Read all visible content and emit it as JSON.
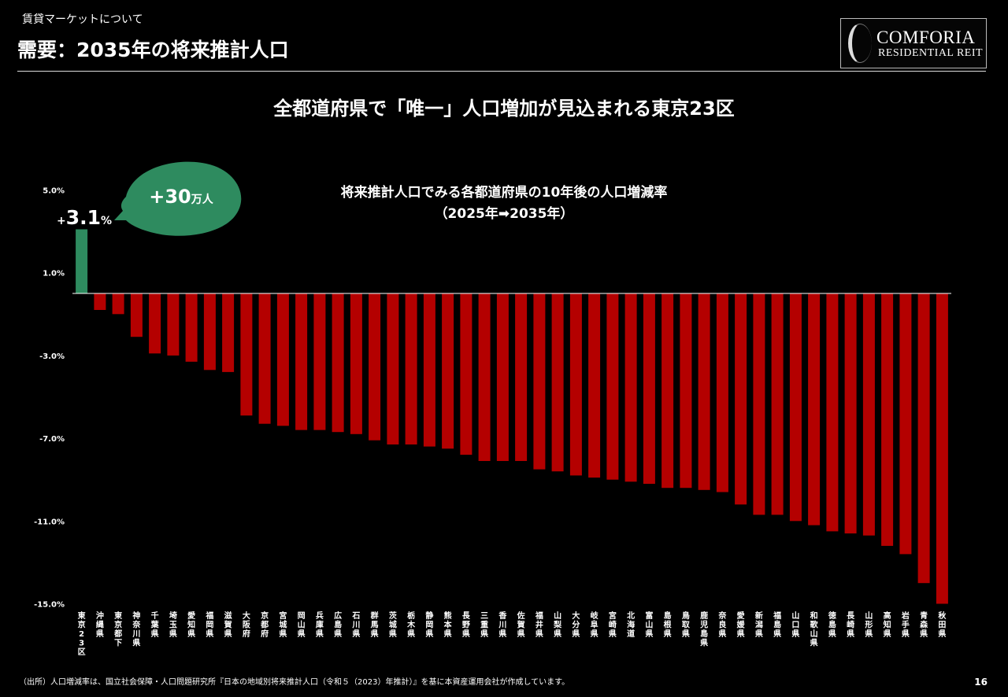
{
  "header": {
    "section": "賃貸マーケットについて",
    "title": "需要：2035年の将来推計人口"
  },
  "logo": {
    "line1": "COMFORIA",
    "line2": "RESIDENTIAL REIT"
  },
  "headline": "全都道府県で「唯一」人口増加が見込まれる東京23区",
  "callout": {
    "prefix": "+",
    "value": "3.1",
    "suffix": "%",
    "bubble_value": "+30",
    "bubble_unit": "万人"
  },
  "colors": {
    "positive": "#2e8b5f",
    "negative": "#b40000",
    "bubble": "#2e8b5f"
  },
  "chart_data": {
    "type": "bar",
    "title": "将来推計人口でみる各都道府県の10年後の人口増減率",
    "subtitle": "（2025年➡2035年）",
    "ylim": [
      -15,
      5
    ],
    "yticks": [
      5,
      1,
      -3,
      -7,
      -11,
      -15
    ],
    "ytick_labels": [
      "5.0%",
      "1.0%",
      "-3.0%",
      "-7.0%",
      "-11.0%",
      "-15.0%"
    ],
    "categories": [
      "東京23区",
      "沖縄県",
      "東京都下",
      "神奈川県",
      "千葉県",
      "埼玉県",
      "愛知県",
      "福岡県",
      "滋賀県",
      "大阪府",
      "京都府",
      "宮城県",
      "岡山県",
      "兵庫県",
      "広島県",
      "石川県",
      "群馬県",
      "茨城県",
      "栃木県",
      "静岡県",
      "熊本県",
      "長野県",
      "三重県",
      "香川県",
      "佐賀県",
      "福井県",
      "山梨県",
      "大分県",
      "岐阜県",
      "宮崎県",
      "北海道",
      "富山県",
      "島根県",
      "鳥取県",
      "鹿児島県",
      "奈良県",
      "愛媛県",
      "新潟県",
      "福島県",
      "山口県",
      "和歌山県",
      "徳島県",
      "長崎県",
      "山形県",
      "高知県",
      "岩手県",
      "青森県",
      "秋田県"
    ],
    "values": [
      3.1,
      -0.8,
      -1.0,
      -2.1,
      -2.9,
      -3.0,
      -3.3,
      -3.7,
      -3.8,
      -5.9,
      -6.3,
      -6.4,
      -6.6,
      -6.6,
      -6.7,
      -6.8,
      -7.1,
      -7.3,
      -7.3,
      -7.4,
      -7.5,
      -7.8,
      -8.1,
      -8.1,
      -8.1,
      -8.5,
      -8.6,
      -8.8,
      -8.9,
      -9.0,
      -9.1,
      -9.2,
      -9.4,
      -9.4,
      -9.5,
      -9.6,
      -10.2,
      -10.7,
      -10.7,
      -11.0,
      -11.2,
      -11.5,
      -11.6,
      -11.7,
      -12.2,
      -12.6,
      -14.0,
      -15.0
    ]
  },
  "footer": {
    "source": "（出所）人口増減率は、国立社会保障・人口問題研究所『日本の地域別将来推計人口（令和５（2023）年推計）』を基に本資産運用会社が作成しています。",
    "page": "16"
  }
}
